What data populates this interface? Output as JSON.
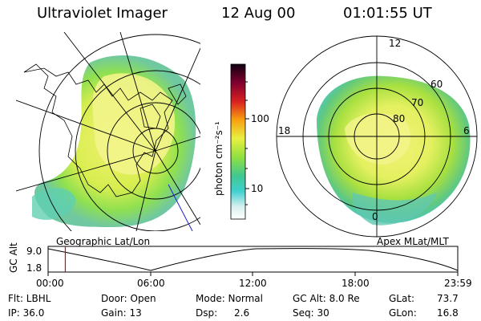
{
  "header": {
    "instrument": "Ultraviolet Imager",
    "date": "12 Aug 00",
    "time": "01:01:55 UT"
  },
  "colorbar": {
    "unit_label": "photon cm⁻²s⁻¹",
    "ticks": [
      "100",
      "10"
    ],
    "scale": "log",
    "colors": [
      "#ffffff",
      "#d8f0f0",
      "#40d0d0",
      "#40c890",
      "#90e040",
      "#e8f040",
      "#f8a010",
      "#d82020",
      "#800030",
      "#100010"
    ]
  },
  "left_panel": {
    "caption": "Geographic Lat/Lon"
  },
  "right_panel": {
    "caption": "Apex MLat/MLT",
    "mlt_labels": {
      "top": "12",
      "left": "18",
      "right": "6",
      "bottom": "0"
    },
    "lat_labels": [
      "60",
      "70",
      "80"
    ]
  },
  "timeline": {
    "ylabel": "GC Alt",
    "y_ticks": [
      "9.0",
      "1.8"
    ],
    "x_ticks": [
      "00:00",
      "06:00",
      "12:00",
      "18:00",
      "23:59"
    ],
    "current_time_fraction": 0.042,
    "marker_color": "#e00000"
  },
  "info": {
    "flt": "Flt: LBHL",
    "ip": "IP: 36.0",
    "door": "Door: Open",
    "gain": "Gain: 13",
    "mode": "Mode: Normal",
    "dsp_label": "Dsp:",
    "dsp_value": "2.6",
    "gc_alt": "GC Alt: 8.0 Re",
    "seq": "Seq: 30",
    "glat_label": "GLat:",
    "glat_value": "73.7",
    "glon_label": "GLon:",
    "glon_value": "16.8"
  }
}
